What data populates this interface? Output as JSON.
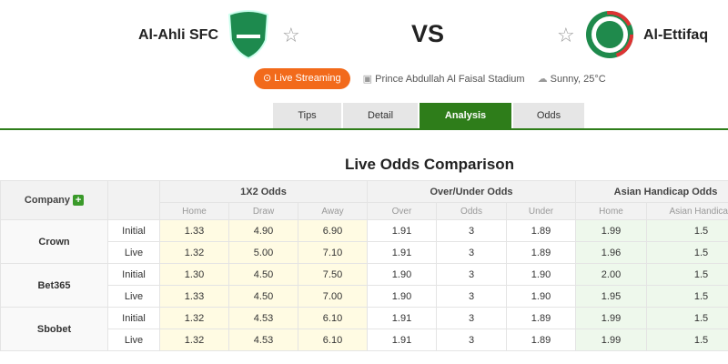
{
  "header": {
    "home_team": "Al-Ahli SFC",
    "away_team": "Al-Ettifaq",
    "vs": "VS",
    "live_label": "Live Streaming",
    "stadium": "Prince Abdullah Al Faisal Stadium",
    "weather": "Sunny, 25°C"
  },
  "tabs": [
    {
      "label": "Tips"
    },
    {
      "label": "Detail"
    },
    {
      "label": "Analysis",
      "active": true
    },
    {
      "label": "Odds"
    }
  ],
  "section_title": "Live Odds Comparison",
  "table": {
    "company_label": "Company",
    "groups": [
      "1X2 Odds",
      "Over/Under Odds",
      "Asian Handicap Odds"
    ],
    "subheaders": [
      "Home",
      "Draw",
      "Away",
      "Over",
      "Odds",
      "Under",
      "Home",
      "Asian Handicap"
    ],
    "companies": [
      {
        "name": "Crown",
        "rows": [
          {
            "type": "Initial",
            "v": [
              "1.33",
              "4.90",
              "6.90",
              "1.91",
              "3",
              "1.89",
              "1.99",
              "1.5"
            ]
          },
          {
            "type": "Live",
            "v": [
              "1.32",
              "5.00",
              "7.10",
              "1.91",
              "3",
              "1.89",
              "1.96",
              "1.5"
            ]
          }
        ]
      },
      {
        "name": "Bet365",
        "rows": [
          {
            "type": "Initial",
            "v": [
              "1.30",
              "4.50",
              "7.50",
              "1.90",
              "3",
              "1.90",
              "2.00",
              "1.5"
            ]
          },
          {
            "type": "Live",
            "v": [
              "1.33",
              "4.50",
              "7.00",
              "1.90",
              "3",
              "1.90",
              "1.95",
              "1.5"
            ]
          }
        ]
      },
      {
        "name": "Sbobet",
        "rows": [
          {
            "type": "Initial",
            "v": [
              "1.32",
              "4.53",
              "6.10",
              "1.91",
              "3",
              "1.89",
              "1.99",
              "1.5"
            ]
          },
          {
            "type": "Live",
            "v": [
              "1.32",
              "4.53",
              "6.10",
              "1.91",
              "3",
              "1.89",
              "1.99",
              "1.5"
            ]
          }
        ]
      }
    ]
  },
  "colors": {
    "accent": "#2e7d1a",
    "live": "#f26a1b"
  }
}
